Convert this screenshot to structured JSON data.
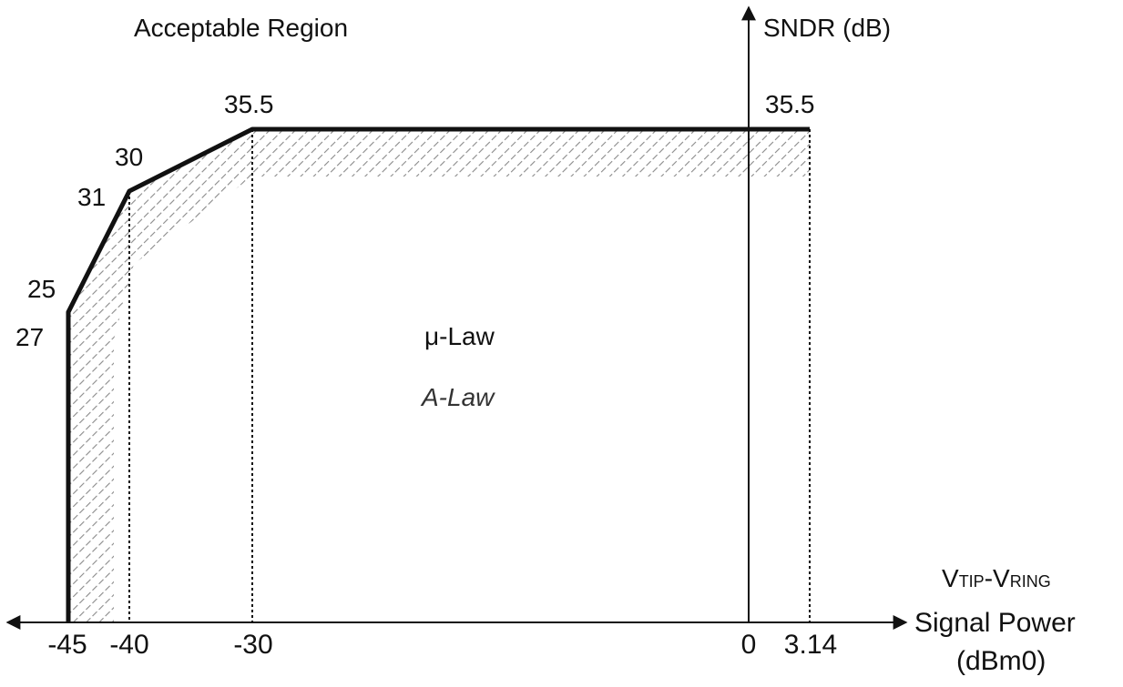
{
  "chart_data": {
    "type": "line",
    "region_label": "Acceptable Region",
    "y_axis_label": "SNDR (dB)",
    "x_axis_label": {
      "signal_v": "V",
      "signal_sub1": "TIP",
      "signal_dash": "-V",
      "signal_sub2": "RING",
      "line2": "Signal Power",
      "line3": "(dBm0)"
    },
    "x_ticks": [
      "-45",
      "-40",
      "-30",
      "0",
      "3.14"
    ],
    "x_tick_values": [
      -45,
      -40,
      -30,
      0,
      3.14
    ],
    "legend": {
      "mu_law": "μ-Law",
      "a_law": "A-Law"
    },
    "series": [
      {
        "name": "μ-Law",
        "x": [
          -45,
          -45,
          -40,
          -30,
          3.14
        ],
        "y": [
          0,
          25,
          30,
          35.5,
          35.5
        ],
        "labels": [
          "25",
          "30",
          "35.5",
          "35.5"
        ]
      },
      {
        "name": "A-Law",
        "x": [
          -45,
          -45,
          -40,
          -30,
          3.14
        ],
        "y": [
          0,
          27,
          31,
          35.5,
          35.5
        ],
        "labels": [
          "27",
          "31"
        ]
      }
    ],
    "annotations": {
      "pt_25": "25",
      "pt_27": "27",
      "pt_30": "30",
      "pt_31": "31",
      "pt_355_left": "35.5",
      "pt_355_right": "35.5"
    },
    "grid": false,
    "colors": {
      "curve": "#111111",
      "hatch": "#888888",
      "axis": "#111111"
    }
  }
}
